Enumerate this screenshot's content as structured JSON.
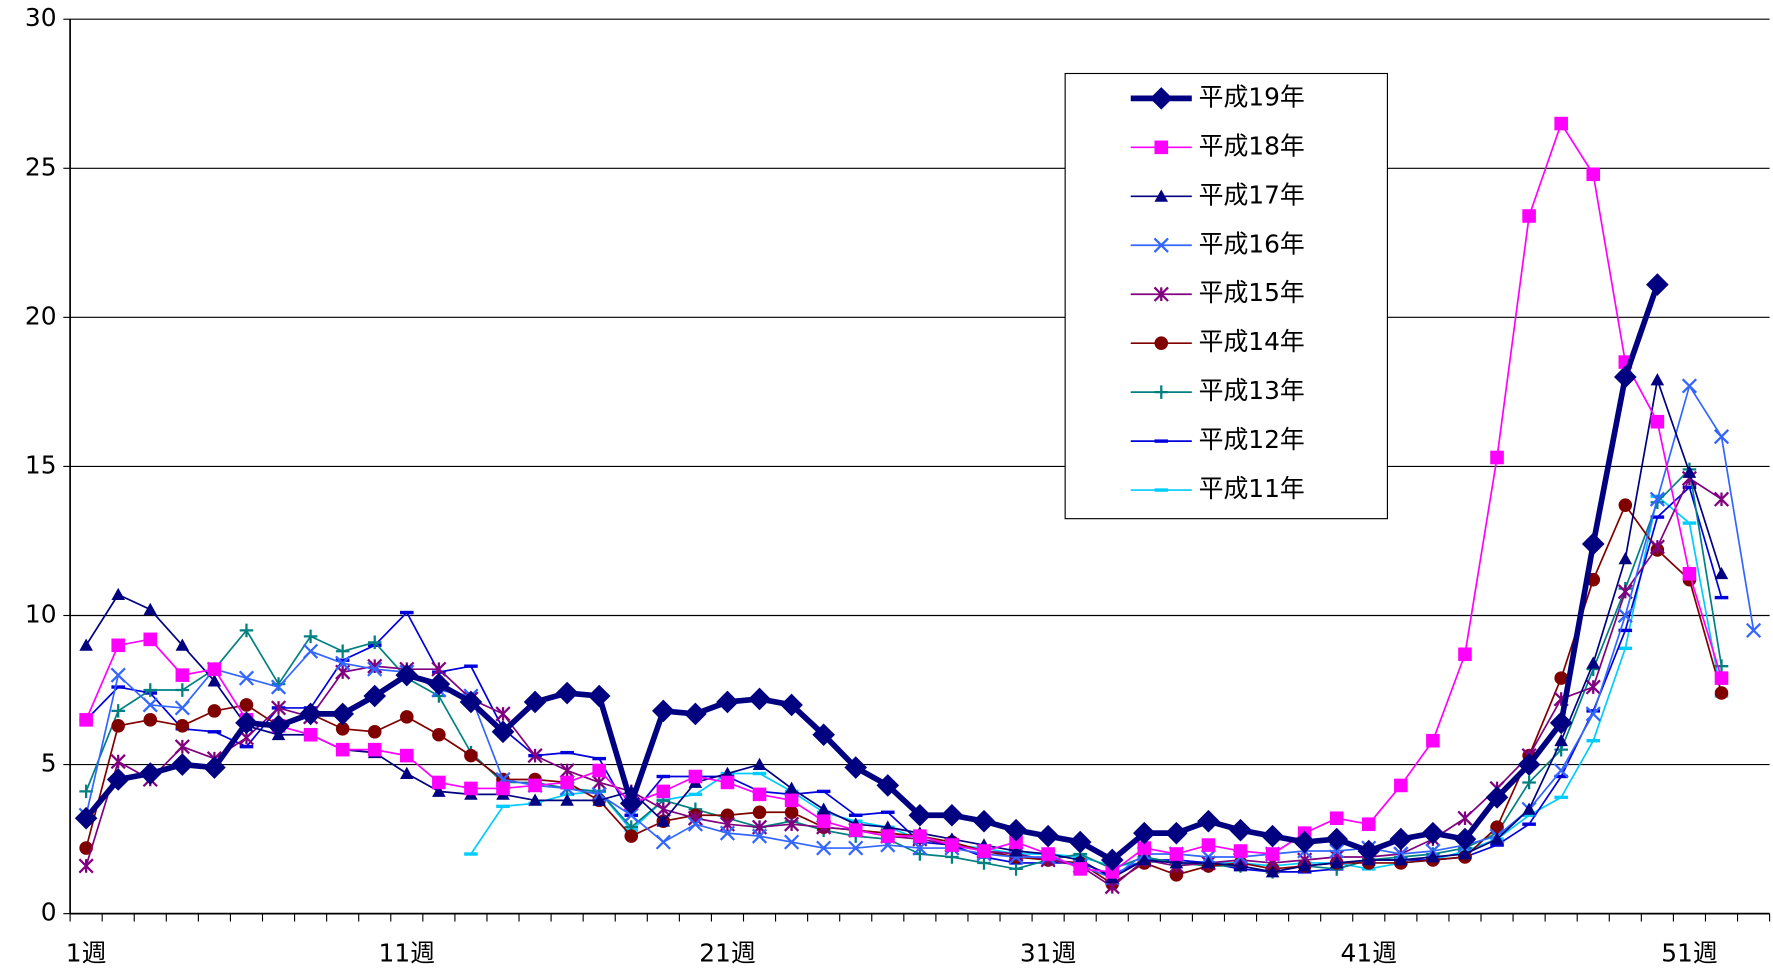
{
  "chart_data": {
    "type": "line",
    "categories": [
      "1週",
      null,
      null,
      null,
      null,
      null,
      null,
      null,
      null,
      null,
      "11週",
      null,
      null,
      null,
      null,
      null,
      null,
      null,
      null,
      null,
      "21週",
      null,
      null,
      null,
      null,
      null,
      null,
      null,
      null,
      null,
      "31週",
      null,
      null,
      null,
      null,
      null,
      null,
      null,
      null,
      null,
      "41週",
      null,
      null,
      null,
      null,
      null,
      null,
      null,
      null,
      null,
      "51週",
      null,
      null
    ],
    "ylim": [
      0,
      30
    ],
    "yticks": [
      0,
      5,
      10,
      15,
      20,
      25,
      30
    ],
    "grid": true,
    "legend": "upper right",
    "series": [
      {
        "name": "平成19年",
        "color": "#000080",
        "marker": "diamond",
        "line_width": 5,
        "values": [
          3.2,
          4.5,
          4.7,
          5.0,
          4.9,
          6.4,
          6.3,
          6.7,
          6.7,
          7.3,
          8.0,
          7.7,
          7.1,
          6.1,
          7.1,
          7.4,
          7.3,
          3.7,
          6.8,
          6.7,
          7.1,
          7.2,
          7.0,
          6.0,
          4.9,
          4.3,
          3.3,
          3.3,
          3.1,
          2.8,
          2.6,
          2.4,
          1.8,
          2.7,
          2.7,
          3.1,
          2.8,
          2.6,
          2.4,
          2.5,
          2.1,
          2.5,
          2.7,
          2.5,
          3.9,
          5.0,
          6.4,
          12.4,
          18.0,
          21.1,
          null,
          null,
          null
        ]
      },
      {
        "name": "平成18年",
        "color": "#ff00ff",
        "marker": "square",
        "line_width": 1.5,
        "values": [
          6.5,
          9.0,
          9.2,
          8.0,
          8.2,
          6.5,
          6.3,
          6.0,
          5.5,
          5.5,
          5.3,
          4.4,
          4.2,
          4.2,
          4.3,
          4.4,
          4.8,
          3.7,
          4.1,
          4.6,
          4.4,
          4.0,
          3.8,
          3.1,
          2.8,
          2.6,
          2.6,
          2.3,
          2.1,
          2.4,
          2.0,
          1.5,
          1.4,
          2.2,
          2.0,
          2.3,
          2.1,
          2.0,
          2.7,
          3.2,
          3.0,
          4.3,
          5.8,
          8.7,
          15.3,
          23.4,
          26.5,
          24.8,
          18.5,
          16.5,
          11.4,
          7.9,
          null
        ]
      },
      {
        "name": "平成17年",
        "color": "#000080",
        "marker": "triangle",
        "line_width": 1.5,
        "values": [
          9.0,
          10.7,
          10.2,
          9.0,
          7.8,
          6.3,
          6.0,
          6.0,
          5.5,
          5.4,
          4.7,
          4.1,
          4.0,
          4.0,
          3.8,
          3.8,
          3.8,
          4.1,
          3.1,
          4.4,
          4.7,
          5.0,
          4.2,
          3.5,
          3.0,
          2.9,
          2.7,
          2.5,
          2.3,
          2.1,
          2.0,
          1.8,
          1.2,
          1.8,
          1.7,
          1.7,
          1.6,
          1.4,
          1.6,
          1.7,
          1.8,
          1.8,
          1.9,
          2.0,
          2.5,
          3.5,
          5.8,
          8.4,
          11.9,
          17.9,
          14.8,
          11.4,
          null
        ]
      },
      {
        "name": "平成16年",
        "color": "#3366ff",
        "marker": "x",
        "line_width": 1.5,
        "values": [
          3.3,
          8.0,
          7.0,
          6.9,
          8.2,
          7.9,
          7.6,
          8.8,
          8.4,
          8.2,
          8.1,
          7.5,
          7.3,
          4.5,
          4.3,
          4.2,
          4.0,
          3.3,
          2.4,
          3.0,
          2.7,
          2.6,
          2.4,
          2.2,
          2.2,
          2.3,
          2.2,
          2.2,
          2.0,
          1.9,
          1.9,
          1.6,
          1.2,
          2.0,
          2.0,
          1.9,
          1.9,
          2.0,
          2.1,
          2.1,
          2.2,
          2.0,
          2.1,
          2.3,
          2.6,
          3.5,
          4.8,
          6.7,
          10.0,
          13.9,
          17.7,
          16.0,
          9.5
        ]
      },
      {
        "name": "平成15年",
        "color": "#800080",
        "marker": "star",
        "line_width": 1.5,
        "values": [
          1.6,
          5.1,
          4.5,
          5.6,
          5.2,
          5.9,
          6.9,
          6.6,
          8.1,
          8.3,
          8.2,
          8.2,
          7.2,
          6.7,
          5.3,
          4.8,
          4.4,
          4.1,
          3.5,
          3.2,
          3.0,
          2.9,
          3.0,
          2.9,
          2.8,
          2.6,
          2.5,
          2.3,
          2.1,
          2.0,
          1.8,
          1.6,
          0.9,
          1.8,
          1.6,
          1.7,
          1.8,
          1.7,
          1.8,
          1.9,
          1.9,
          2.0,
          2.5,
          3.2,
          4.2,
          5.3,
          7.2,
          7.6,
          10.8,
          12.3,
          14.6,
          13.9,
          null
        ]
      },
      {
        "name": "平成14年",
        "color": "#800000",
        "marker": "circle",
        "line_width": 1.5,
        "values": [
          2.2,
          6.3,
          6.5,
          6.3,
          6.8,
          7.0,
          6.3,
          6.7,
          6.2,
          6.1,
          6.6,
          6.0,
          5.3,
          4.5,
          4.5,
          4.4,
          3.8,
          2.6,
          3.1,
          3.3,
          3.3,
          3.4,
          3.4,
          2.9,
          2.8,
          2.7,
          2.6,
          2.4,
          2.1,
          1.9,
          1.8,
          1.7,
          1.0,
          1.7,
          1.3,
          1.6,
          1.7,
          1.5,
          1.6,
          1.7,
          1.7,
          1.7,
          1.8,
          1.9,
          2.9,
          5.3,
          7.9,
          11.2,
          13.7,
          12.2,
          11.2,
          7.4,
          null
        ]
      },
      {
        "name": "平成13年",
        "color": "#008080",
        "marker": "plus",
        "line_width": 1.5,
        "values": [
          4.1,
          6.8,
          7.5,
          7.5,
          8.2,
          9.5,
          7.7,
          9.3,
          8.8,
          9.1,
          7.9,
          7.3,
          5.4,
          4.4,
          4.4,
          4.2,
          4.1,
          2.9,
          3.8,
          3.5,
          3.2,
          2.9,
          3.1,
          2.8,
          2.6,
          2.5,
          2.0,
          1.9,
          1.7,
          1.5,
          1.8,
          2.0,
          1.5,
          1.9,
          1.7,
          1.6,
          1.6,
          1.4,
          1.6,
          1.5,
          1.8,
          1.9,
          2.0,
          2.2,
          2.7,
          4.4,
          5.5,
          8.2,
          10.9,
          13.8,
          14.9,
          8.3,
          null
        ]
      },
      {
        "name": "平成12年",
        "color": "#0000dd",
        "marker": "dash",
        "line_width": 1.5,
        "values": [
          6.5,
          7.6,
          7.4,
          6.2,
          6.1,
          5.6,
          6.9,
          6.9,
          8.5,
          9.0,
          10.1,
          8.1,
          8.3,
          6.2,
          5.3,
          5.4,
          5.2,
          3.3,
          4.6,
          4.6,
          4.6,
          4.1,
          4.0,
          4.1,
          3.3,
          3.4,
          2.4,
          2.3,
          1.9,
          1.7,
          1.7,
          1.7,
          1.3,
          1.8,
          1.8,
          1.7,
          1.5,
          1.4,
          1.4,
          1.5,
          1.8,
          1.8,
          1.8,
          1.9,
          2.3,
          3.0,
          4.6,
          6.8,
          9.5,
          13.3,
          14.3,
          10.6,
          null
        ]
      },
      {
        "name": "平成11年",
        "color": "#00ccff",
        "marker": "dash",
        "line_width": 1.5,
        "values": [
          null,
          null,
          null,
          null,
          null,
          null,
          null,
          null,
          null,
          null,
          null,
          null,
          2.0,
          3.6,
          3.7,
          4.0,
          4.1,
          2.8,
          3.8,
          4.0,
          4.7,
          4.7,
          4.1,
          3.4,
          3.1,
          2.9,
          2.5,
          2.3,
          2.2,
          2.0,
          2.0,
          1.9,
          1.6,
          1.7,
          1.8,
          1.7,
          1.7,
          1.6,
          1.7,
          1.7,
          1.5,
          1.7,
          1.8,
          2.1,
          2.5,
          3.3,
          3.9,
          5.8,
          8.9,
          14.0,
          13.1,
          7.3,
          null
        ]
      }
    ]
  }
}
